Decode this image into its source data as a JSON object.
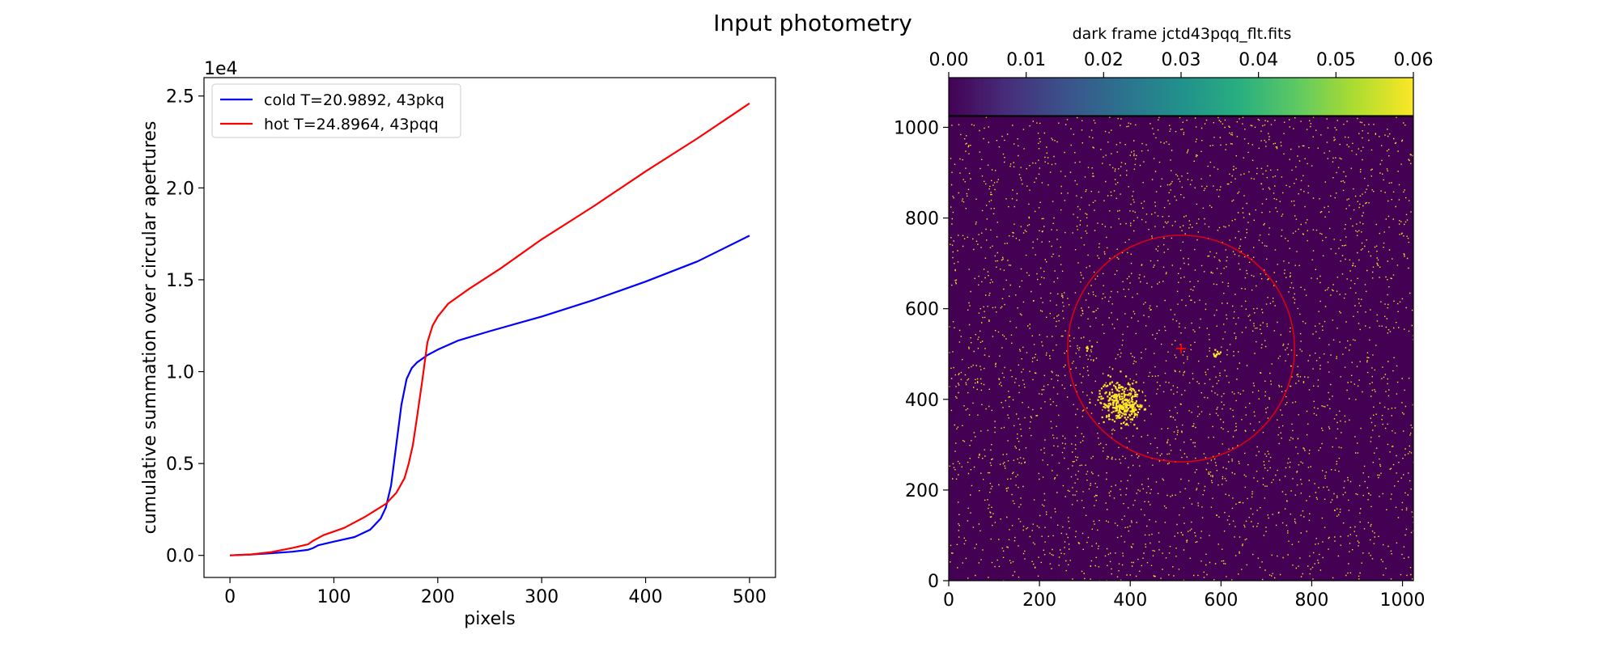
{
  "figure": {
    "suptitle": "Input photometry"
  },
  "chart_data": [
    {
      "type": "line",
      "title": "",
      "xlabel": "pixels",
      "ylabel": "cumulative summation over circular apertures",
      "offset_text": "1e4",
      "xlim": [
        -25,
        525
      ],
      "ylim": [
        -0.12,
        2.6
      ],
      "y_scale_multiplier": 10000,
      "grid": false,
      "legend_position": "top-left",
      "x_ticks": [
        0,
        100,
        200,
        300,
        400,
        500
      ],
      "y_ticks": [
        0.0,
        0.5,
        1.0,
        1.5,
        2.0,
        2.5
      ],
      "x_tick_labels": [
        "0",
        "100",
        "200",
        "300",
        "400",
        "500"
      ],
      "y_tick_labels": [
        "0.0",
        "0.5",
        "1.0",
        "1.5",
        "2.0",
        "2.5"
      ],
      "series": [
        {
          "name": "cold T=20.9892, 43pkq",
          "color": "#0000ff",
          "x": [
            0,
            20,
            40,
            60,
            75,
            80,
            85,
            100,
            120,
            135,
            145,
            150,
            155,
            160,
            165,
            170,
            175,
            180,
            190,
            200,
            220,
            250,
            300,
            350,
            400,
            450,
            500
          ],
          "y": [
            0.0,
            0.005,
            0.012,
            0.02,
            0.03,
            0.04,
            0.055,
            0.075,
            0.1,
            0.14,
            0.2,
            0.26,
            0.38,
            0.6,
            0.82,
            0.96,
            1.02,
            1.05,
            1.09,
            1.12,
            1.17,
            1.22,
            1.3,
            1.39,
            1.49,
            1.6,
            1.74
          ]
        },
        {
          "name": "hot T=24.8964, 43pqq",
          "color": "#ff0000",
          "x": [
            0,
            20,
            40,
            60,
            75,
            80,
            90,
            110,
            130,
            150,
            160,
            168,
            172,
            176,
            180,
            185,
            190,
            195,
            200,
            210,
            230,
            260,
            300,
            350,
            400,
            450,
            500
          ],
          "y": [
            0.0,
            0.005,
            0.018,
            0.04,
            0.06,
            0.08,
            0.11,
            0.15,
            0.21,
            0.28,
            0.34,
            0.42,
            0.5,
            0.6,
            0.75,
            0.95,
            1.16,
            1.25,
            1.3,
            1.37,
            1.45,
            1.56,
            1.72,
            1.9,
            2.09,
            2.27,
            2.46
          ]
        }
      ]
    },
    {
      "type": "heatmap",
      "title": "dark frame jctd43pqq_flt.fits",
      "xlim": [
        0,
        1024
      ],
      "ylim": [
        0,
        1024
      ],
      "x_ticks": [
        0,
        200,
        400,
        600,
        800,
        1000
      ],
      "y_ticks": [
        0,
        200,
        400,
        600,
        800,
        1000
      ],
      "x_tick_labels": [
        "0",
        "200",
        "400",
        "600",
        "800",
        "1000"
      ],
      "y_tick_labels": [
        "0",
        "200",
        "400",
        "600",
        "800",
        "1000"
      ],
      "colormap": "viridis",
      "colorbar": {
        "position": "top",
        "range": [
          0.0,
          0.06
        ],
        "ticks": [
          0.0,
          0.01,
          0.02,
          0.03,
          0.04,
          0.05,
          0.06
        ],
        "tick_labels": [
          "0.00",
          "0.01",
          "0.02",
          "0.03",
          "0.04",
          "0.05",
          "0.06"
        ]
      },
      "background_color": "#440154",
      "speckle_color": "#fde725",
      "aperture_circle": {
        "center": [
          512,
          512
        ],
        "radius": 250,
        "color": "#ff0000"
      },
      "center_marker": {
        "x": 512,
        "y": 512,
        "color": "#ff0000"
      },
      "hot_spots": [
        {
          "x": 375,
          "y": 400,
          "spread": 22,
          "count": 260
        },
        {
          "x": 395,
          "y": 375,
          "spread": 14,
          "count": 60
        },
        {
          "x": 590,
          "y": 500,
          "spread": 4,
          "count": 12
        },
        {
          "x": 305,
          "y": 515,
          "spread": 3,
          "count": 6
        }
      ]
    }
  ]
}
